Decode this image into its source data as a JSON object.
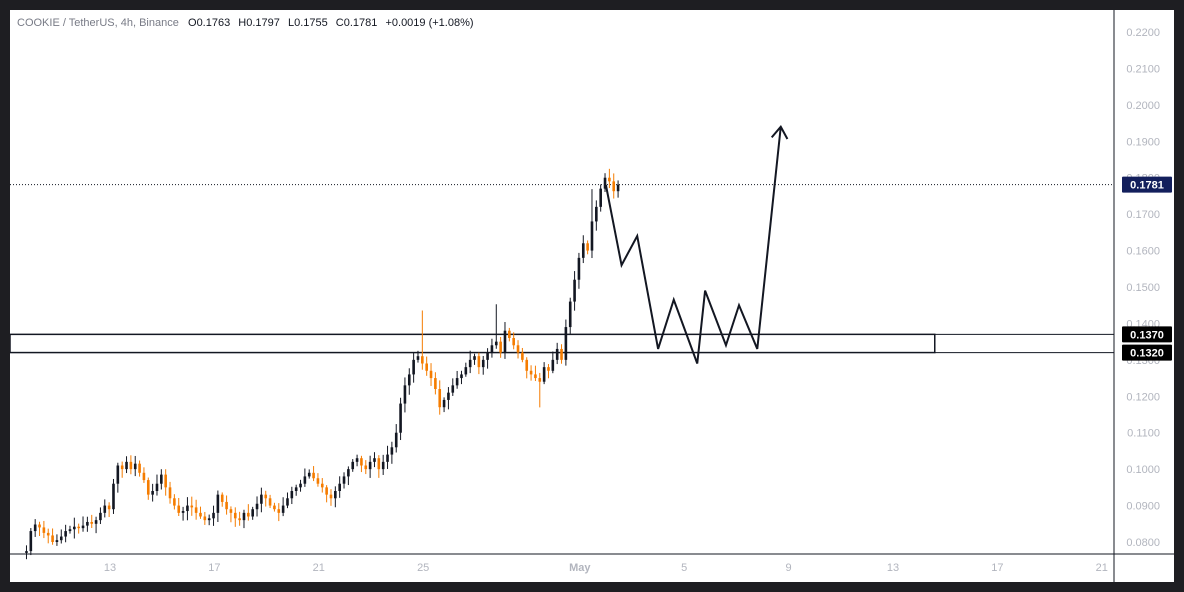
{
  "legend": {
    "symbol": "COOKIE / TetherUS, 4h, Binance",
    "open_label": "O",
    "open": "0.1763",
    "high_label": "H",
    "high": "0.1797",
    "low_label": "L",
    "low": "0.1755",
    "close_label": "C",
    "close": "0.1781",
    "change": "+0.0019 (+1.08%)"
  },
  "colors": {
    "up": "#131722",
    "down": "#f57c00",
    "price_tag_bg": "#131f5c",
    "grid_text": "#b2b5be"
  },
  "chart_data": {
    "type": "candlestick",
    "title": "COOKIE / TetherUS, 4h, Binance",
    "ylim": [
      0.0765,
      0.2245
    ],
    "y_ticks": [
      "0.2200",
      "0.2100",
      "0.2000",
      "0.1900",
      "0.1800",
      "0.1700",
      "0.1600",
      "0.1500",
      "0.1400",
      "0.1300",
      "0.1200",
      "0.1100",
      "0.1000",
      "0.0900",
      "0.0800"
    ],
    "x_ticks": [
      {
        "day": 0,
        "label": "13"
      },
      {
        "day": 4,
        "label": "17"
      },
      {
        "day": 8,
        "label": "21"
      },
      {
        "day": 12,
        "label": "25"
      },
      {
        "day": 18,
        "label": "May"
      },
      {
        "day": 22,
        "label": "5"
      },
      {
        "day": 26,
        "label": "9"
      },
      {
        "day": 30,
        "label": "13"
      },
      {
        "day": 34,
        "label": "17"
      },
      {
        "day": 38,
        "label": "21"
      }
    ],
    "x_unit": "days since Apr 13",
    "candle_start_day": -3.2,
    "candles_per_day": 6,
    "closes": [
      0.0775,
      0.083,
      0.0848,
      0.084,
      0.0825,
      0.0818,
      0.08,
      0.0805,
      0.0815,
      0.083,
      0.0835,
      0.0842,
      0.0838,
      0.0845,
      0.0855,
      0.085,
      0.086,
      0.088,
      0.09,
      0.089,
      0.096,
      0.101,
      0.1,
      0.102,
      0.1,
      0.1015,
      0.099,
      0.097,
      0.093,
      0.094,
      0.096,
      0.0985,
      0.095,
      0.092,
      0.09,
      0.088,
      0.0885,
      0.09,
      0.0895,
      0.088,
      0.087,
      0.086,
      0.0865,
      0.088,
      0.093,
      0.091,
      0.089,
      0.088,
      0.0865,
      0.086,
      0.088,
      0.087,
      0.089,
      0.0905,
      0.093,
      0.092,
      0.09,
      0.089,
      0.088,
      0.09,
      0.092,
      0.094,
      0.095,
      0.096,
      0.098,
      0.099,
      0.0975,
      0.096,
      0.095,
      0.093,
      0.092,
      0.094,
      0.096,
      0.098,
      0.1,
      0.102,
      0.103,
      0.101,
      0.1,
      0.102,
      0.103,
      0.1,
      0.102,
      0.104,
      0.106,
      0.11,
      0.118,
      0.123,
      0.126,
      0.13,
      0.131,
      0.129,
      0.127,
      0.125,
      0.122,
      0.117,
      0.119,
      0.121,
      0.123,
      0.125,
      0.126,
      0.128,
      0.13,
      0.131,
      0.128,
      0.13,
      0.132,
      0.134,
      0.135,
      0.132,
      0.138,
      0.136,
      0.134,
      0.132,
      0.13,
      0.127,
      0.126,
      0.125,
      0.124,
      0.128,
      0.127,
      0.13,
      0.133,
      0.13,
      0.139,
      0.146,
      0.152,
      0.158,
      0.162,
      0.16,
      0.168,
      0.172,
      0.177,
      0.18,
      0.179,
      0.1763,
      0.1781
    ],
    "overlays": {
      "support_zone": {
        "top": 0.137,
        "bottom": 0.132,
        "end_day": 31.6,
        "labels": [
          "0.1370",
          "0.1320"
        ]
      },
      "last_price": {
        "value": 0.1781,
        "label": "0.1781"
      },
      "projection_path": [
        {
          "day": 19.0,
          "price": 0.178
        },
        {
          "day": 19.6,
          "price": 0.156
        },
        {
          "day": 20.2,
          "price": 0.164
        },
        {
          "day": 21.0,
          "price": 0.133
        },
        {
          "day": 21.6,
          "price": 0.1465
        },
        {
          "day": 22.5,
          "price": 0.129
        },
        {
          "day": 22.8,
          "price": 0.149
        },
        {
          "day": 23.6,
          "price": 0.134
        },
        {
          "day": 24.1,
          "price": 0.145
        },
        {
          "day": 24.8,
          "price": 0.133
        },
        {
          "day": 25.7,
          "price": 0.194
        }
      ]
    }
  }
}
